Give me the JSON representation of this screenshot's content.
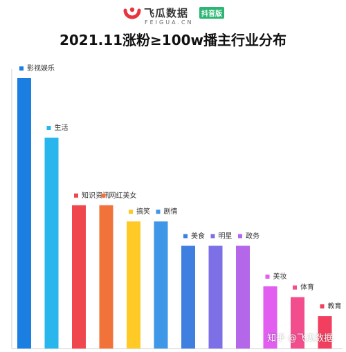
{
  "brand": {
    "name": "飞瓜数据",
    "badge": "抖音版",
    "domain": "FEIGUA.CN",
    "logo_color": "#e8343c",
    "badge_color": "#2bb673"
  },
  "watermark": "知乎 @飞瓜数据",
  "chart_data": {
    "type": "bar",
    "title": "2021.11涨粉≥100w播主行业分布",
    "categories": [
      "影视娱乐",
      "生活",
      "知识资讯",
      "网红美女",
      "搞笑",
      "剧情",
      "美食",
      "明星",
      "政务",
      "美妆",
      "体育",
      "教育"
    ],
    "values": [
      100,
      78,
      53,
      53,
      47,
      47,
      38,
      38,
      38,
      23,
      19,
      12
    ],
    "colors": [
      "#1a7fe0",
      "#29b6ec",
      "#f0474f",
      "#f2733a",
      "#ffc926",
      "#3f97e8",
      "#3f7fe0",
      "#7d70e6",
      "#b467e8",
      "#e15ef0",
      "#f24d8d",
      "#f23f5f"
    ],
    "ylim": [
      0,
      100
    ],
    "grid": false,
    "legend": "labels above bars",
    "xlabel": "",
    "ylabel": ""
  }
}
